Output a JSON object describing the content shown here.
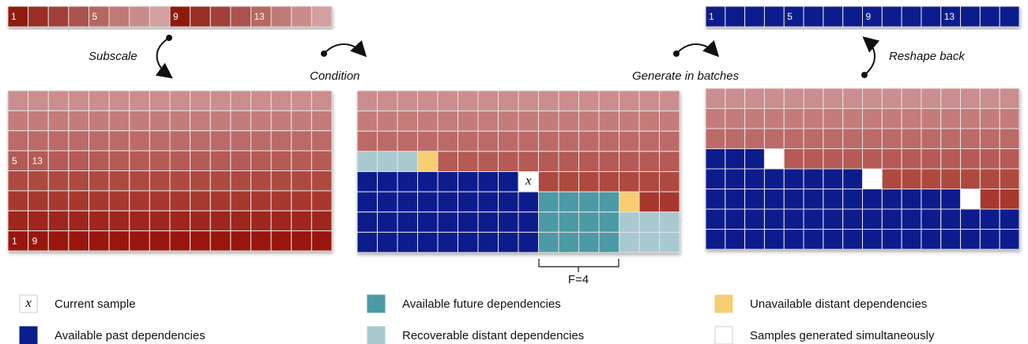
{
  "strip_top_left": {
    "labels": [
      "1",
      "5",
      "9",
      "13"
    ]
  },
  "strip_top_right": {
    "labels": [
      "1",
      "5",
      "9",
      "13"
    ]
  },
  "steps": {
    "subscale": "Subscale",
    "condition": "Condition",
    "generate": "Generate in batches",
    "reshape": "Reshape back"
  },
  "grid_left": {
    "labels": [
      "5",
      "13",
      "1",
      "9"
    ]
  },
  "grid_middle": {
    "current": "x",
    "bracket": "F=4"
  },
  "legend": {
    "items": [
      "Current sample",
      "Available future dependencies",
      "Unavailable distant dependencies",
      "Available past dependencies",
      "Recoverable distant dependencies",
      "Samples generated simultaneously"
    ],
    "icon_x": "x"
  }
}
